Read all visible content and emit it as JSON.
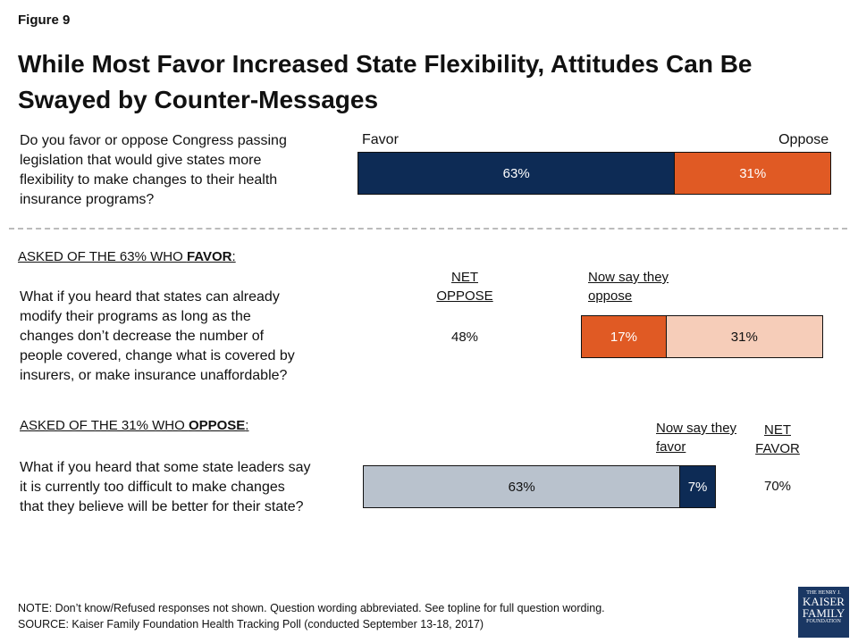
{
  "figure": "Figure 9",
  "title": [
    "While Most Favor Increased State Flexibility, Attitudes Can Be",
    "Swayed by Counter-Messages"
  ],
  "chart_data": [
    {
      "type": "bar",
      "question": [
        "Do you favor or oppose Congress passing",
        "legislation that would give states more",
        "flexibility to make changes to their health",
        "insurance programs?"
      ],
      "series": [
        {
          "name": "Favor",
          "color": "#0d2b55",
          "values": [
            63
          ],
          "value_labels": [
            "63%"
          ]
        },
        {
          "name": "Oppose",
          "color": "#e05a24",
          "values": [
            31
          ],
          "value_labels": [
            "31%"
          ]
        }
      ]
    },
    {
      "type": "bar",
      "heading": [
        "ASKED OF THE 63% WHO ",
        "FAVOR",
        ":"
      ],
      "question": [
        "What if you heard that states can already",
        "modify their programs as long as the",
        "changes don’t decrease the number of",
        "people covered, change what is covered by",
        "insurers, or make insurance unaffordable?"
      ],
      "net_name": [
        "NET",
        "OPPOSE"
      ],
      "net": 48,
      "net_label": "48%",
      "series": [
        {
          "name": "Now say they oppose",
          "color": "#e05a24",
          "values": [
            17
          ],
          "value_labels": [
            "17%"
          ]
        },
        {
          "color": "#f6cdb9",
          "values": [
            31
          ],
          "value_labels": [
            "31%"
          ]
        }
      ]
    },
    {
      "type": "bar",
      "heading": [
        "ASKED OF THE 31% WHO ",
        "OPPOSE",
        ":"
      ],
      "question": [
        "What if you heard that some state leaders say",
        "it is currently too difficult to make changes",
        "that they believe will be better for their state?"
      ],
      "net_name": [
        "NET",
        "FAVOR"
      ],
      "net": 70,
      "net_label": "70%",
      "series": [
        {
          "color": "#b9c2cd",
          "values": [
            63
          ],
          "value_labels": [
            "63%"
          ]
        },
        {
          "name": "Now say they favor",
          "color": "#0d2b55",
          "values": [
            7
          ],
          "value_labels": [
            "7%"
          ]
        }
      ]
    }
  ],
  "notes": [
    "NOTE: Don’t know/Refused responses not shown. Question wording abbreviated. See topline for full question wording.",
    "SOURCE: Kaiser Family Foundation Health Tracking Poll (conducted September 13-18, 2017)"
  ],
  "logo": [
    "THE HENRY J.",
    "KAISER",
    "FAMILY",
    "FOUNDATION"
  ]
}
